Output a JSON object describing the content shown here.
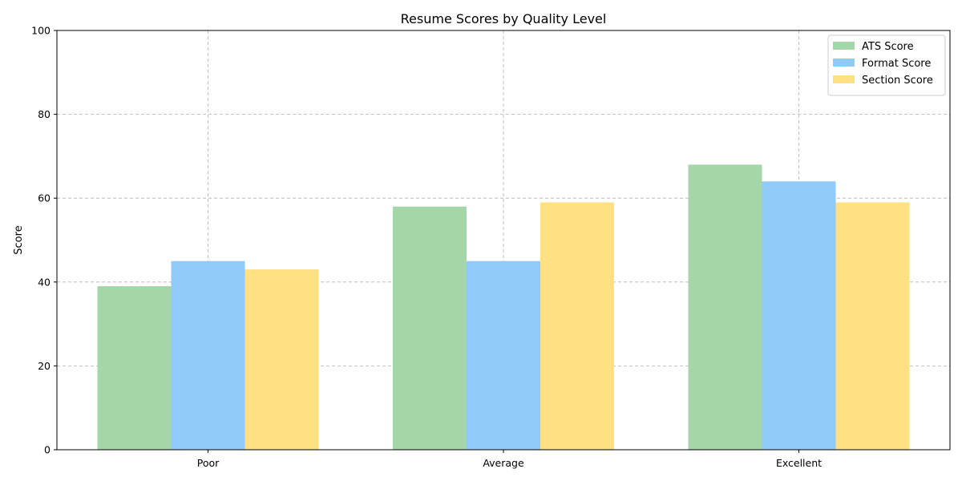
{
  "chart_data": {
    "type": "bar",
    "title": "Resume Scores by Quality Level",
    "xlabel": "",
    "ylabel": "Score",
    "categories": [
      "Poor",
      "Average",
      "Excellent"
    ],
    "series": [
      {
        "name": "ATS Score",
        "values": [
          39,
          58,
          68
        ],
        "color": "#a5d6a7"
      },
      {
        "name": "Format Score",
        "values": [
          45,
          45,
          64
        ],
        "color": "#90caf9"
      },
      {
        "name": "Section Score",
        "values": [
          43,
          59,
          59
        ],
        "color": "#ffe082"
      }
    ],
    "ylim": [
      0,
      100
    ],
    "yticks": [
      "0",
      "20",
      "40",
      "60",
      "80",
      "100"
    ],
    "grid": true,
    "legend_position": "top-right"
  }
}
